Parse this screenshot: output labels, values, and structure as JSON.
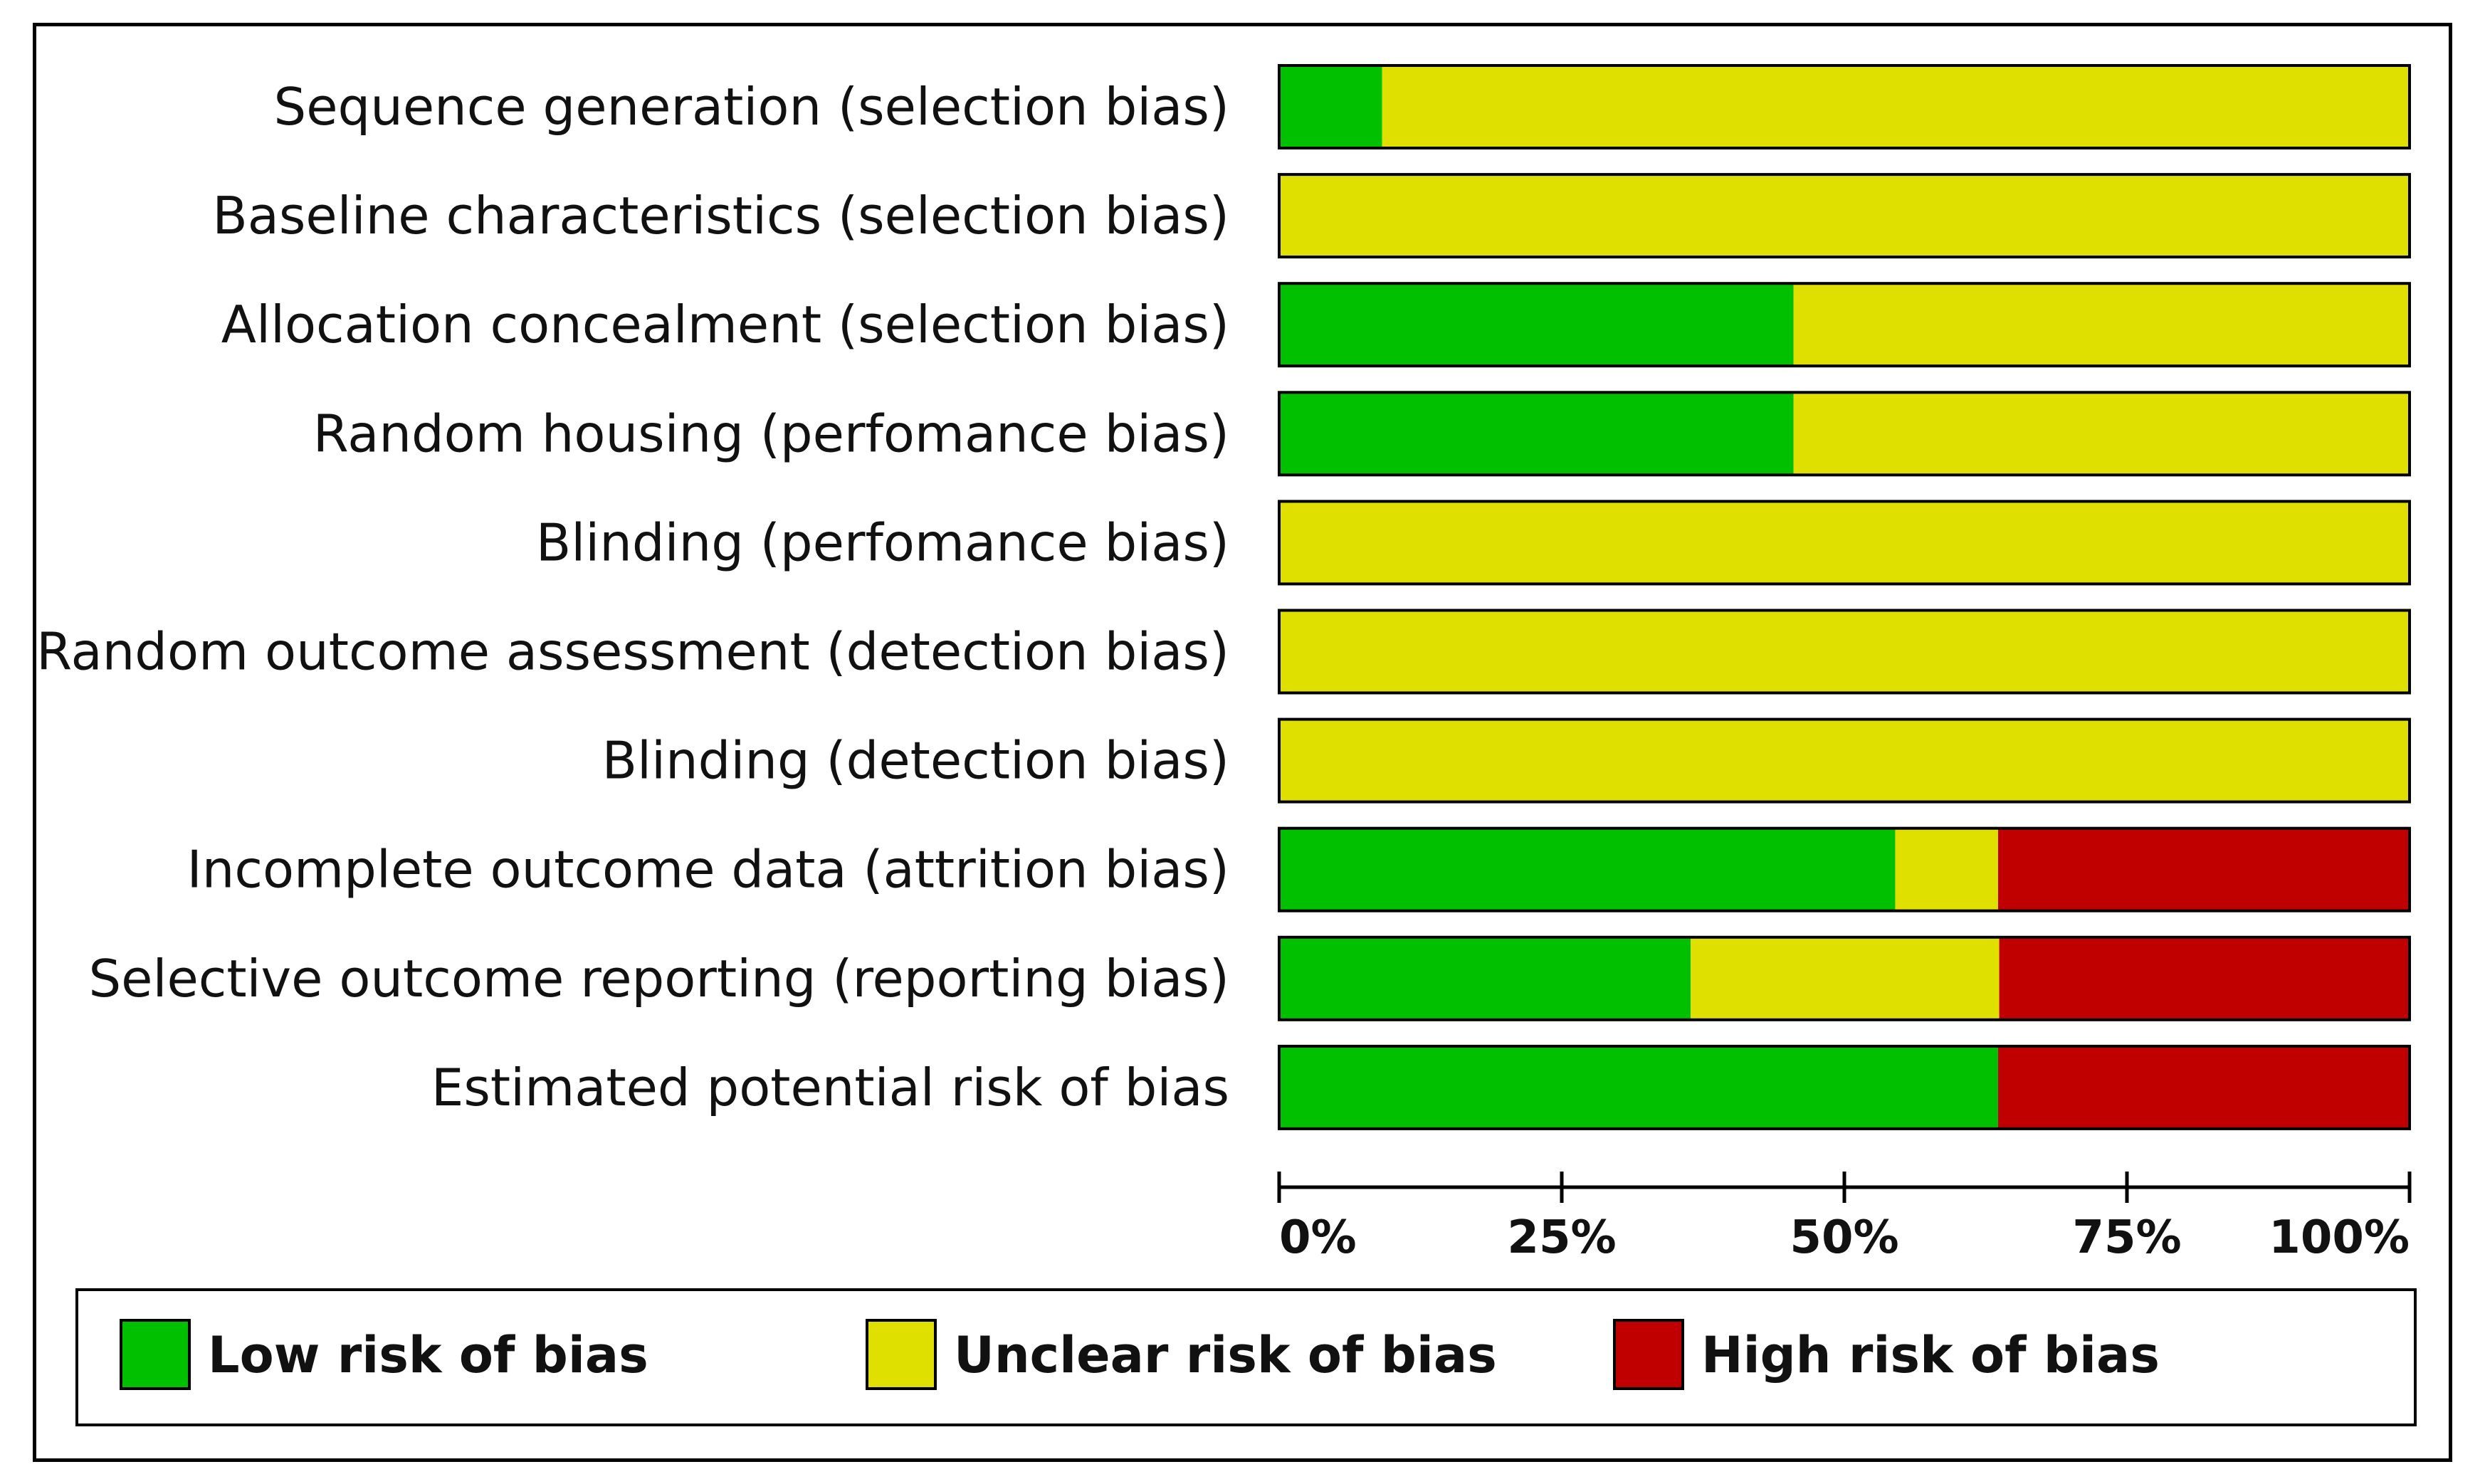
{
  "chart_data": {
    "type": "bar",
    "orientation": "horizontal",
    "stacked": true,
    "categories": [
      "Sequence generation (selection bias)",
      "Baseline characteristics (selection bias)",
      "Allocation concealment (selection bias)",
      "Random housing (perfomance bias)",
      "Blinding (perfomance bias)",
      "Random outcome assessment (detection bias)",
      "Blinding (detection bias)",
      "Incomplete outcome data (attrition bias)",
      "Selective outcome reporting (reporting bias)",
      "Estimated potential risk of bias"
    ],
    "series": [
      {
        "name": "Low risk of bias",
        "color": "#00c000",
        "values": [
          9.1,
          0,
          45.5,
          45.5,
          0,
          0,
          0,
          54.5,
          36.4,
          63.6
        ]
      },
      {
        "name": "Unclear risk of bias",
        "color": "#e0e000",
        "values": [
          90.9,
          100,
          54.5,
          54.5,
          100,
          100,
          100,
          9.1,
          27.3,
          0
        ]
      },
      {
        "name": "High risk of bias",
        "color": "#c00000",
        "values": [
          0,
          0,
          0,
          0,
          0,
          0,
          0,
          36.4,
          36.4,
          36.4
        ]
      }
    ],
    "x_ticks": [
      "0%",
      "25%",
      "50%",
      "75%",
      "100%"
    ],
    "xlim": [
      0,
      100
    ],
    "xlabel": "",
    "ylabel": "",
    "title": "",
    "legend_position": "bottom",
    "grid": false
  }
}
